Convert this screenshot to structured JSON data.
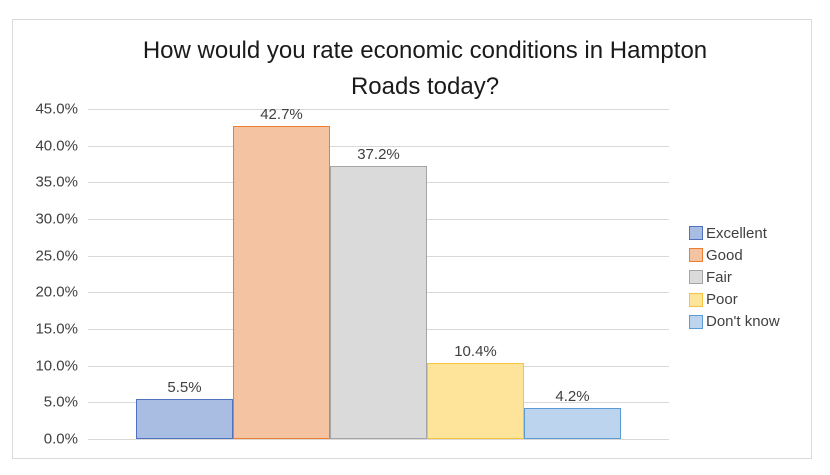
{
  "chart_data": {
    "type": "bar",
    "title": "How would you rate economic conditions in Hampton Roads today?",
    "title_lines": [
      "How would you rate economic conditions in Hampton",
      "Roads today?"
    ],
    "xlabel": "",
    "ylabel": "",
    "ylim": [
      0,
      45
    ],
    "yticks": [
      "0.0%",
      "5.0%",
      "10.0%",
      "15.0%",
      "20.0%",
      "25.0%",
      "30.0%",
      "35.0%",
      "40.0%",
      "45.0%"
    ],
    "grid": true,
    "legend_position": "right",
    "categories": [
      "Excellent",
      "Good",
      "Fair",
      "Poor",
      "Don't know"
    ],
    "values": [
      5.5,
      42.7,
      37.2,
      10.4,
      4.2
    ],
    "value_labels": [
      "5.5%",
      "42.7%",
      "37.2%",
      "10.4%",
      "4.2%"
    ],
    "series": [
      {
        "name": "Excellent",
        "values": [
          5.5
        ],
        "color": "#a9bde3",
        "border": "#4f72be"
      },
      {
        "name": "Good",
        "values": [
          42.7
        ],
        "color": "#f4c3a2",
        "border": "#ed7d31"
      },
      {
        "name": "Fair",
        "values": [
          37.2
        ],
        "color": "#dadada",
        "border": "#a5a5a5"
      },
      {
        "name": "Poor",
        "values": [
          10.4
        ],
        "color": "#fde49a",
        "border": "#f5c341"
      },
      {
        "name": "Don't know",
        "values": [
          4.2
        ],
        "color": "#bcd4ee",
        "border": "#5b9bd5"
      }
    ]
  }
}
